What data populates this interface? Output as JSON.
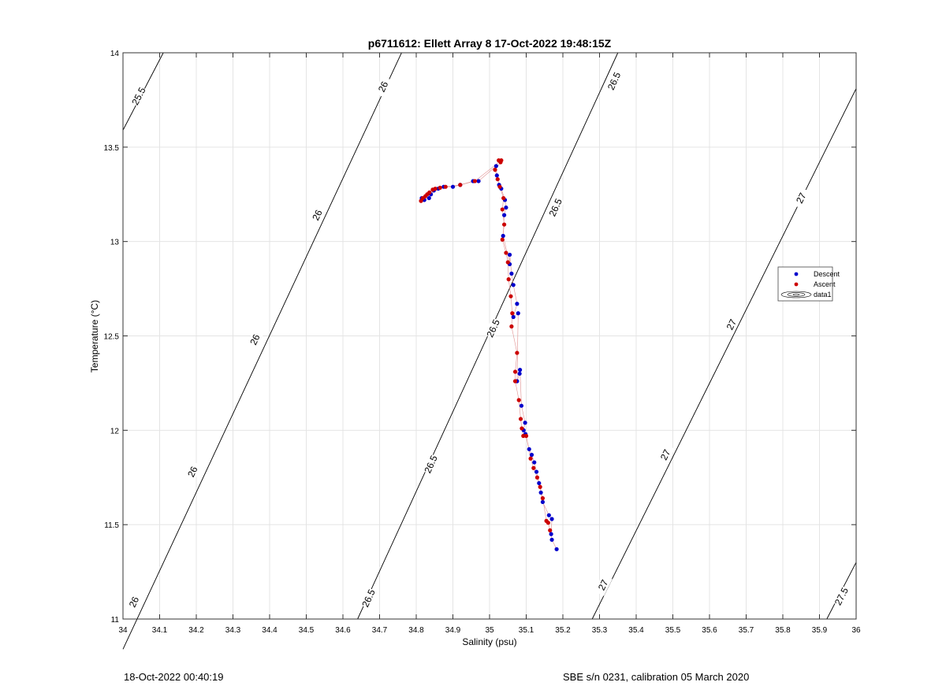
{
  "chart_data": {
    "type": "scatter",
    "title": "p6711612: Ellett Array 8 17-Oct-2022 19:48:15Z",
    "xlabel": "Salinity (psu)",
    "ylabel": "Temperature (°C)",
    "xlim": [
      34,
      36
    ],
    "ylim": [
      11,
      14
    ],
    "xticks": [
      "34",
      "34.1",
      "34.2",
      "34.3",
      "34.4",
      "34.5",
      "34.6",
      "34.7",
      "34.8",
      "34.9",
      "35",
      "35.1",
      "35.2",
      "35.3",
      "35.4",
      "35.5",
      "35.6",
      "35.7",
      "35.8",
      "35.9",
      "36"
    ],
    "yticks": [
      "11",
      "11.5",
      "12",
      "12.5",
      "13",
      "13.5",
      "14"
    ],
    "grid": true,
    "legend_position": "right",
    "legend": [
      "Descent",
      "Ascent",
      "data1"
    ],
    "colors": {
      "descent": "#0000cc",
      "ascent": "#cc0000",
      "line": "#e09090",
      "contour": "#000000",
      "grid": "#e4e4e4"
    },
    "series": [
      {
        "name": "Descent",
        "points": [
          [
            35.183,
            11.37
          ],
          [
            35.17,
            11.42
          ],
          [
            35.168,
            11.45
          ],
          [
            35.17,
            11.53
          ],
          [
            35.162,
            11.55
          ],
          [
            35.145,
            11.62
          ],
          [
            35.14,
            11.67
          ],
          [
            35.135,
            11.72
          ],
          [
            35.128,
            11.78
          ],
          [
            35.122,
            11.83
          ],
          [
            35.115,
            11.87
          ],
          [
            35.108,
            11.9
          ],
          [
            35.098,
            11.98
          ],
          [
            35.093,
            12.0
          ],
          [
            35.097,
            12.04
          ],
          [
            35.087,
            12.13
          ],
          [
            35.083,
            12.32
          ],
          [
            35.082,
            12.3
          ],
          [
            35.075,
            12.26
          ],
          [
            35.078,
            12.62
          ],
          [
            35.065,
            12.6
          ],
          [
            35.075,
            12.67
          ],
          [
            35.065,
            12.77
          ],
          [
            35.06,
            12.83
          ],
          [
            35.055,
            12.93
          ],
          [
            35.055,
            12.88
          ],
          [
            35.037,
            13.03
          ],
          [
            35.04,
            13.14
          ],
          [
            35.045,
            13.18
          ],
          [
            35.042,
            13.22
          ],
          [
            35.032,
            13.28
          ],
          [
            35.026,
            13.3
          ],
          [
            35.02,
            13.35
          ],
          [
            35.018,
            13.4
          ],
          [
            34.97,
            13.32
          ],
          [
            34.955,
            13.32
          ],
          [
            34.92,
            13.3
          ],
          [
            34.9,
            13.29
          ],
          [
            34.875,
            13.29
          ],
          [
            34.86,
            13.28
          ],
          [
            34.848,
            13.27
          ],
          [
            34.84,
            13.25
          ],
          [
            34.835,
            13.23
          ],
          [
            34.822,
            13.22
          ],
          [
            34.815,
            13.23
          ]
        ]
      },
      {
        "name": "Ascent",
        "points": [
          [
            35.165,
            11.47
          ],
          [
            35.16,
            11.51
          ],
          [
            35.155,
            11.52
          ],
          [
            35.145,
            11.64
          ],
          [
            35.138,
            11.7
          ],
          [
            35.13,
            11.75
          ],
          [
            35.12,
            11.8
          ],
          [
            35.112,
            11.85
          ],
          [
            35.1,
            11.97
          ],
          [
            35.092,
            11.97
          ],
          [
            35.088,
            12.01
          ],
          [
            35.085,
            12.06
          ],
          [
            35.08,
            12.16
          ],
          [
            35.07,
            12.26
          ],
          [
            35.07,
            12.31
          ],
          [
            35.075,
            12.41
          ],
          [
            35.06,
            12.55
          ],
          [
            35.062,
            12.62
          ],
          [
            35.058,
            12.71
          ],
          [
            35.052,
            12.8
          ],
          [
            35.05,
            12.89
          ],
          [
            35.045,
            12.94
          ],
          [
            35.035,
            13.01
          ],
          [
            35.04,
            13.09
          ],
          [
            35.035,
            13.17
          ],
          [
            35.038,
            13.23
          ],
          [
            35.028,
            13.29
          ],
          [
            35.022,
            13.33
          ],
          [
            35.015,
            13.38
          ],
          [
            35.03,
            13.42
          ],
          [
            35.025,
            13.43
          ],
          [
            35.032,
            13.43
          ],
          [
            34.96,
            13.32
          ],
          [
            34.92,
            13.3
          ],
          [
            34.88,
            13.29
          ],
          [
            34.865,
            13.285
          ],
          [
            34.852,
            13.28
          ],
          [
            34.845,
            13.275
          ],
          [
            34.836,
            13.26
          ],
          [
            34.83,
            13.25
          ],
          [
            34.825,
            13.24
          ],
          [
            34.818,
            13.23
          ],
          [
            34.813,
            13.215
          ]
        ]
      }
    ],
    "isopycnals": [
      {
        "label": "25.5",
        "points": [
          [
            34.0,
            13.59
          ],
          [
            34.11,
            14.0
          ]
        ],
        "labels_at": [
          [
            34.043,
            13.77
          ]
        ]
      },
      {
        "label": "26",
        "points": [
          [
            34.0,
            10.84
          ],
          [
            34.76,
            14.0
          ]
        ],
        "labels_at": [
          [
            34.03,
            11.09
          ],
          [
            34.19,
            11.78
          ],
          [
            34.36,
            12.48
          ],
          [
            34.53,
            13.14
          ],
          [
            34.71,
            13.82
          ]
        ]
      },
      {
        "label": "26.5",
        "points": [
          [
            34.64,
            11.0
          ],
          [
            35.35,
            14.0
          ]
        ],
        "labels_at": [
          [
            34.67,
            11.11
          ],
          [
            34.84,
            11.82
          ],
          [
            35.01,
            12.54
          ],
          [
            35.18,
            13.18
          ],
          [
            35.34,
            13.85
          ]
        ]
      },
      {
        "label": "27",
        "points": [
          [
            35.28,
            11.0
          ],
          [
            36.0,
            13.81
          ]
        ],
        "labels_at": [
          [
            35.31,
            11.18
          ],
          [
            35.48,
            11.87
          ],
          [
            35.66,
            12.56
          ],
          [
            35.85,
            13.23
          ]
        ]
      },
      {
        "label": "27.5",
        "points": [
          [
            35.92,
            11.0
          ],
          [
            36.0,
            11.3
          ]
        ],
        "labels_at": [
          [
            35.96,
            11.12
          ]
        ]
      }
    ]
  },
  "footer": {
    "left": "18-Oct-2022 00:40:19",
    "right": "SBE s/n 0231, calibration 05 March 2020"
  }
}
